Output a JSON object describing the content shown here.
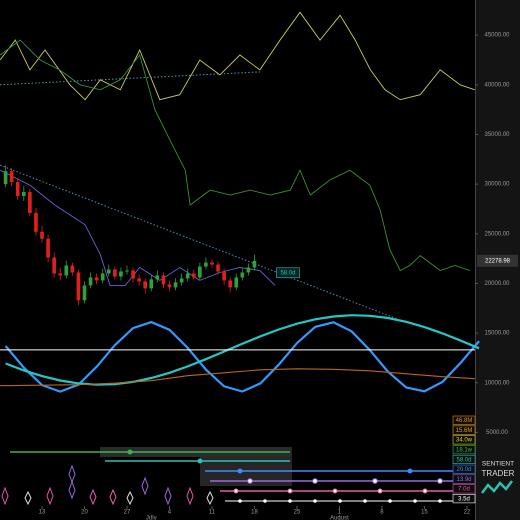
{
  "chart_data": {
    "type": "candlestick",
    "up_color": "#2fa33a",
    "down_color": "#e0201c",
    "xlim": [
      -6.92,
      71.33
    ],
    "ylim": [
      0,
      48540
    ],
    "xticks": [
      {
        "value": 0,
        "label": "13"
      },
      {
        "value": 7,
        "label": "20"
      },
      {
        "value": 14,
        "label": "27"
      },
      {
        "value": 21,
        "label": "4"
      },
      {
        "value": 28,
        "label": "11"
      },
      {
        "value": 35,
        "label": "18"
      },
      {
        "value": 42,
        "label": "25"
      },
      {
        "value": 49,
        "label": "1"
      },
      {
        "value": 56,
        "label": "8"
      },
      {
        "value": 63,
        "label": "15"
      },
      {
        "value": 70,
        "label": "22"
      }
    ],
    "month_ticks": [
      {
        "value": 18,
        "label": "July"
      },
      {
        "value": 49,
        "label": "August"
      }
    ],
    "yticks": [
      {
        "value": 45000,
        "label": "45000.00"
      },
      {
        "value": 40000,
        "label": "40000.00"
      },
      {
        "value": 35000,
        "label": "35000.00"
      },
      {
        "value": 30000,
        "label": "30000.00"
      },
      {
        "value": 25000,
        "label": "25000.00"
      },
      {
        "value": 20000,
        "label": "20000.00"
      },
      {
        "value": 15000,
        "label": "15000.00"
      },
      {
        "value": 10000,
        "label": "10000.00"
      },
      {
        "value": 5000,
        "label": "5000.00"
      }
    ],
    "candles": {
      "x": [
        -6,
        -5,
        -4,
        -3,
        -2,
        -1,
        0,
        1,
        2,
        3,
        4,
        5,
        6,
        7,
        8,
        9,
        10,
        11,
        12,
        13,
        14,
        15,
        16,
        17,
        18,
        19,
        20,
        21,
        22,
        23,
        24,
        25,
        26,
        27,
        28,
        29,
        30,
        31,
        32,
        33,
        34,
        35
      ],
      "open": [
        30000,
        31300,
        30200,
        28800,
        29200,
        27100,
        25200,
        24500,
        22600,
        21000,
        20800,
        21800,
        21100,
        18300,
        19800,
        20600,
        20300,
        21000,
        21400,
        20700,
        21200,
        21300,
        20500,
        20200,
        19500,
        20400,
        20800,
        19900,
        19600,
        20100,
        20500,
        21000,
        20600,
        21700,
        22100,
        21900,
        21200,
        20300,
        19600,
        20600,
        21100,
        21600
      ],
      "high": [
        31900,
        31600,
        30600,
        29800,
        29500,
        27600,
        25800,
        24900,
        23100,
        21600,
        22300,
        22100,
        21400,
        20200,
        21100,
        21000,
        21500,
        21900,
        21700,
        21600,
        21800,
        21600,
        20900,
        20500,
        20800,
        21300,
        21100,
        20300,
        20500,
        21000,
        21500,
        21400,
        22100,
        22600,
        22400,
        22200,
        21500,
        20600,
        21000,
        21500,
        22000,
        22900
      ],
      "low": [
        29700,
        29800,
        28400,
        28300,
        26800,
        24800,
        24100,
        22100,
        20600,
        20300,
        20500,
        20800,
        17800,
        18000,
        19500,
        19900,
        20000,
        20700,
        20400,
        20300,
        20900,
        20100,
        19800,
        19000,
        19200,
        20100,
        19500,
        19200,
        19300,
        19800,
        20200,
        20300,
        20400,
        21400,
        21600,
        20900,
        19900,
        19100,
        19300,
        20300,
        20800,
        21300
      ],
      "close": [
        31300,
        30200,
        28800,
        29200,
        27100,
        25200,
        24500,
        22600,
        21000,
        20800,
        21800,
        21100,
        18300,
        19800,
        20600,
        20300,
        21000,
        21400,
        20700,
        21200,
        21300,
        20500,
        20200,
        19500,
        20400,
        20800,
        19900,
        19600,
        20100,
        20500,
        21000,
        20600,
        21700,
        22100,
        21900,
        21200,
        20300,
        19600,
        20600,
        21100,
        21600,
        22278.98
      ]
    },
    "price_label": {
      "value": 22278.98,
      "label": "22278.98"
    },
    "lines": [
      {
        "color": "#c9cf52",
        "width": 0.9,
        "x": [
          -6.9,
          -4.4,
          -2,
          0.5,
          4.6,
          7.1,
          9.6,
          12.9,
          16.1,
          19.4,
          22.7,
          26,
          29.3,
          32.6,
          35.9,
          39.2,
          42.5,
          45.8,
          49.1,
          51.6,
          54.1,
          56.5,
          59,
          62.3,
          65.6,
          68.9,
          71.3
        ],
        "values": [
          42500,
          44500,
          41500,
          43500,
          40000,
          38500,
          40500,
          39500,
          43500,
          38500,
          39000,
          42500,
          41000,
          43000,
          41500,
          44500,
          47300,
          44500,
          47000,
          44500,
          41500,
          39500,
          38500,
          39000,
          41500,
          40000,
          39500
        ]
      },
      {
        "color": "#3c8f3a",
        "width": 0.9,
        "x": [
          -6.9,
          -3.6,
          -0.3,
          2.9,
          6.3,
          9.6,
          12.9,
          16.1,
          18.6,
          21.1,
          23.6,
          24.4,
          27.7,
          31,
          34.3,
          37.6,
          40.9,
          42.5,
          44.2,
          47.4,
          50.7,
          54,
          55.7,
          57.3,
          59,
          60.6,
          62.3,
          65.6,
          68,
          70.5
        ],
        "values": [
          43000,
          44500,
          42500,
          41500,
          40000,
          39500,
          40500,
          43000,
          37500,
          34400,
          31400,
          27900,
          29400,
          28900,
          29400,
          28900,
          29400,
          31400,
          28900,
          30400,
          31400,
          29900,
          27400,
          23400,
          21300,
          21800,
          22800,
          21300,
          21800,
          21300
        ]
      },
      {
        "color": "#6464d6",
        "width": 0.9,
        "x": [
          -6.9,
          -2,
          2.1,
          7.1,
          9.6,
          11.2,
          13.7,
          16.1,
          19.4,
          22.7,
          26,
          29.3,
          32.6,
          35.9,
          38.4
        ],
        "values": [
          31400,
          29900,
          27900,
          25900,
          22900,
          19800,
          19800,
          21600,
          20300,
          21600,
          20300,
          21100,
          21600,
          21300,
          19800
        ]
      },
      {
        "color": "#3399ff",
        "width": 2.2,
        "x": [
          -6,
          -3,
          0,
          3,
          6,
          9,
          12,
          15,
          18,
          21,
          24,
          27,
          30,
          33,
          36,
          39,
          42,
          45,
          48,
          51,
          54,
          57,
          60,
          63,
          66,
          69,
          72
        ],
        "values": [
          13700,
          11520,
          9760,
          9100,
          9800,
          11600,
          13780,
          15500,
          16100,
          15330,
          13500,
          11320,
          9640,
          9110,
          9940,
          11810,
          13990,
          15620,
          16080,
          15180,
          13280,
          11110,
          9520,
          9130,
          10090,
          12030,
          14190
        ]
      },
      {
        "color": "#24c6c6",
        "width": 2.2,
        "x": [
          -6,
          -3,
          0,
          3,
          6,
          9,
          12,
          15,
          18,
          21,
          24,
          27,
          30,
          33,
          36,
          39,
          42,
          45,
          48,
          51,
          54,
          57,
          60,
          63,
          66,
          69,
          72
        ],
        "values": [
          11930,
          11240,
          10660,
          10220,
          9930,
          9800,
          9860,
          10080,
          10470,
          11000,
          11640,
          12370,
          13140,
          13930,
          14670,
          15360,
          15940,
          16380,
          16670,
          16800,
          16740,
          16520,
          16130,
          15600,
          14960,
          14230,
          13460
        ]
      },
      {
        "color": "#b8651e",
        "width": 1.1,
        "x": [
          -6.9,
          0,
          6,
          12,
          18,
          24,
          30,
          36,
          42,
          48,
          54,
          60,
          66,
          71.3
        ],
        "values": [
          9700,
          9750,
          9800,
          9950,
          10200,
          10700,
          11000,
          11300,
          11400,
          11350,
          11200,
          10900,
          10600,
          10400
        ]
      }
    ],
    "trendlines": [
      {
        "color": "#4f9fa0",
        "x": [
          -6.9,
          35.9
        ],
        "values": [
          40000,
          41300
        ]
      },
      {
        "color": "#4f8fb0",
        "x": [
          -6.9,
          59
        ],
        "values": [
          31900,
          16300
        ]
      }
    ],
    "hline": {
      "color": "#ffffff",
      "value": 13300
    },
    "cycle_label": "58.0d",
    "cycles": [
      {
        "label": "46.8M",
        "color": "#e8891c"
      },
      {
        "label": "15.6M",
        "color": "#e8a020"
      },
      {
        "label": "34.0w",
        "color": "#d8cf2c"
      },
      {
        "label": "18.1w",
        "color": "#3db34f"
      },
      {
        "label": "58.0d",
        "color": "#2cc1b1"
      },
      {
        "label": "20.0d",
        "color": "#3a8cff"
      },
      {
        "label": "13.9d",
        "color": "#9a6ae0"
      },
      {
        "label": "7.0d",
        "color": "#e25fa3"
      },
      {
        "label": "3.5d",
        "color": "#ffffff"
      }
    ],
    "logo": [
      "SENTIENT",
      "TRADER"
    ]
  }
}
